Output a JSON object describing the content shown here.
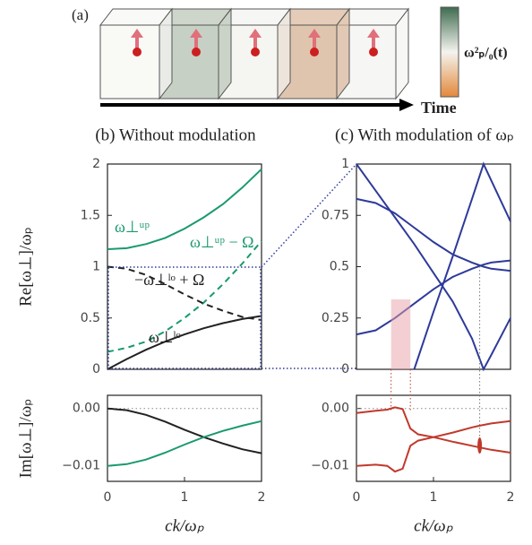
{
  "schematic": {
    "label": "(a)",
    "colorbar_label": "ω²ₚ/₀(t)",
    "time_label": "Time"
  },
  "chart_data": [
    {
      "type": "line",
      "title": "(b) Without modulation",
      "y_label": "Re[ω⊥]/ωₚ",
      "x": [
        0,
        0.25,
        0.5,
        0.75,
        1,
        1.25,
        1.5,
        1.75,
        2
      ],
      "xlim": [
        0,
        2
      ],
      "ylim": [
        0,
        2
      ],
      "yticks": [
        0,
        0.5,
        1,
        1.5,
        2
      ],
      "series": [
        {
          "color": "#1a9a6c",
          "style": "solid",
          "values": [
            1.17,
            1.18,
            1.22,
            1.28,
            1.37,
            1.48,
            1.61,
            1.77,
            1.95
          ]
        },
        {
          "color": "#222222",
          "style": "solid",
          "values": [
            0,
            0.1,
            0.19,
            0.27,
            0.34,
            0.4,
            0.45,
            0.49,
            0.52
          ]
        },
        {
          "color": "#1a9a6c",
          "style": "dashed",
          "values": [
            0.17,
            0.21,
            0.27,
            0.37,
            0.5,
            0.65,
            0.83,
            1.03,
            1.25
          ]
        },
        {
          "color": "#222222",
          "style": "dashed",
          "values": [
            1.0,
            0.98,
            0.92,
            0.83,
            0.73,
            0.64,
            0.57,
            0.51,
            0.48
          ]
        }
      ],
      "annotations": [
        "ω⊥ᵘᵖ",
        "ω⊥ᵘᵖ − Ω",
        "−ω⊥ˡᵒ + Ω",
        "ω⊥ˡᵒ"
      ]
    },
    {
      "type": "line",
      "y_label": "Im[ω⊥]/ωₚ",
      "x_label": "ck/ωₚ",
      "x": [
        0,
        0.25,
        0.5,
        0.75,
        1,
        1.25,
        1.5,
        1.75,
        2
      ],
      "xlim": [
        0,
        2
      ],
      "ylim": [
        -0.0127,
        0.0023
      ],
      "xticks": [
        0,
        1,
        2
      ],
      "yticks": [
        {
          "value": 0,
          "label": "0.00"
        },
        {
          "value": -0.01,
          "label": "−0.01"
        }
      ],
      "series": [
        {
          "color": "#222222",
          "style": "solid",
          "values": [
            0,
            -0.0003,
            -0.0011,
            -0.0023,
            -0.0037,
            -0.005,
            -0.0061,
            -0.0071,
            -0.0078
          ]
        },
        {
          "color": "#1a9a6c",
          "style": "solid",
          "values": [
            -0.01,
            -0.0097,
            -0.0089,
            -0.0077,
            -0.0063,
            -0.005,
            -0.0039,
            -0.003,
            -0.0022
          ]
        }
      ]
    },
    {
      "type": "line",
      "title": "(c) With modulation of ωₚ",
      "x": [
        0,
        0.25,
        0.5,
        0.75,
        1,
        1.25,
        1.5,
        1.65,
        1.75,
        2
      ],
      "xlim": [
        0,
        2
      ],
      "ylim": [
        0,
        1
      ],
      "yticks": [
        0,
        0.25,
        0.5,
        0.75,
        1
      ],
      "series": [
        {
          "color": "#2e3a9a",
          "style": "solid",
          "values": [
            1.0,
            0.87,
            0.74,
            0.61,
            0.47,
            0.33,
            0.15,
            0.0,
            0.07,
            0.25
          ]
        },
        {
          "color": "#2e3a9a",
          "style": "solid",
          "values": [
            null,
            null,
            null,
            0.0,
            0.28,
            0.55,
            0.83,
            1.0,
            0.92,
            0.72
          ]
        },
        {
          "color": "#2e3a9a",
          "style": "solid",
          "values": [
            0.17,
            0.19,
            0.25,
            0.32,
            0.39,
            0.45,
            0.49,
            0.51,
            0.52,
            0.53
          ]
        },
        {
          "color": "#2e3a9a",
          "style": "solid",
          "values": [
            0.83,
            0.81,
            0.76,
            0.69,
            0.62,
            0.56,
            0.52,
            0.5,
            0.49,
            0.48
          ]
        }
      ]
    },
    {
      "type": "line",
      "x_label": "ck/ωₚ",
      "x": [
        0,
        0.25,
        0.4,
        0.5,
        0.6,
        0.7,
        0.8,
        1,
        1.25,
        1.5,
        1.6,
        1.75,
        2
      ],
      "xlim": [
        0,
        2
      ],
      "ylim": [
        -0.0127,
        0.0023
      ],
      "xticks": [
        0,
        1,
        2
      ],
      "yticks": [
        {
          "value": 0,
          "label": "0.00"
        },
        {
          "value": -0.01,
          "label": "−0.01"
        }
      ],
      "series": [
        {
          "color": "#c0392b",
          "style": "solid",
          "values": [
            -0.0008,
            -0.0004,
            -0.0002,
            0.0002,
            -0.0001,
            -0.0035,
            -0.0045,
            -0.005,
            -0.0058,
            -0.0065,
            -0.0068,
            -0.0072,
            -0.0077
          ]
        },
        {
          "color": "#c0392b",
          "style": "solid",
          "values": [
            -0.01,
            -0.0098,
            -0.01,
            -0.011,
            -0.0105,
            -0.0065,
            -0.0056,
            -0.005,
            -0.0042,
            -0.0033,
            -0.003,
            -0.0026,
            -0.0022
          ]
        }
      ]
    }
  ]
}
